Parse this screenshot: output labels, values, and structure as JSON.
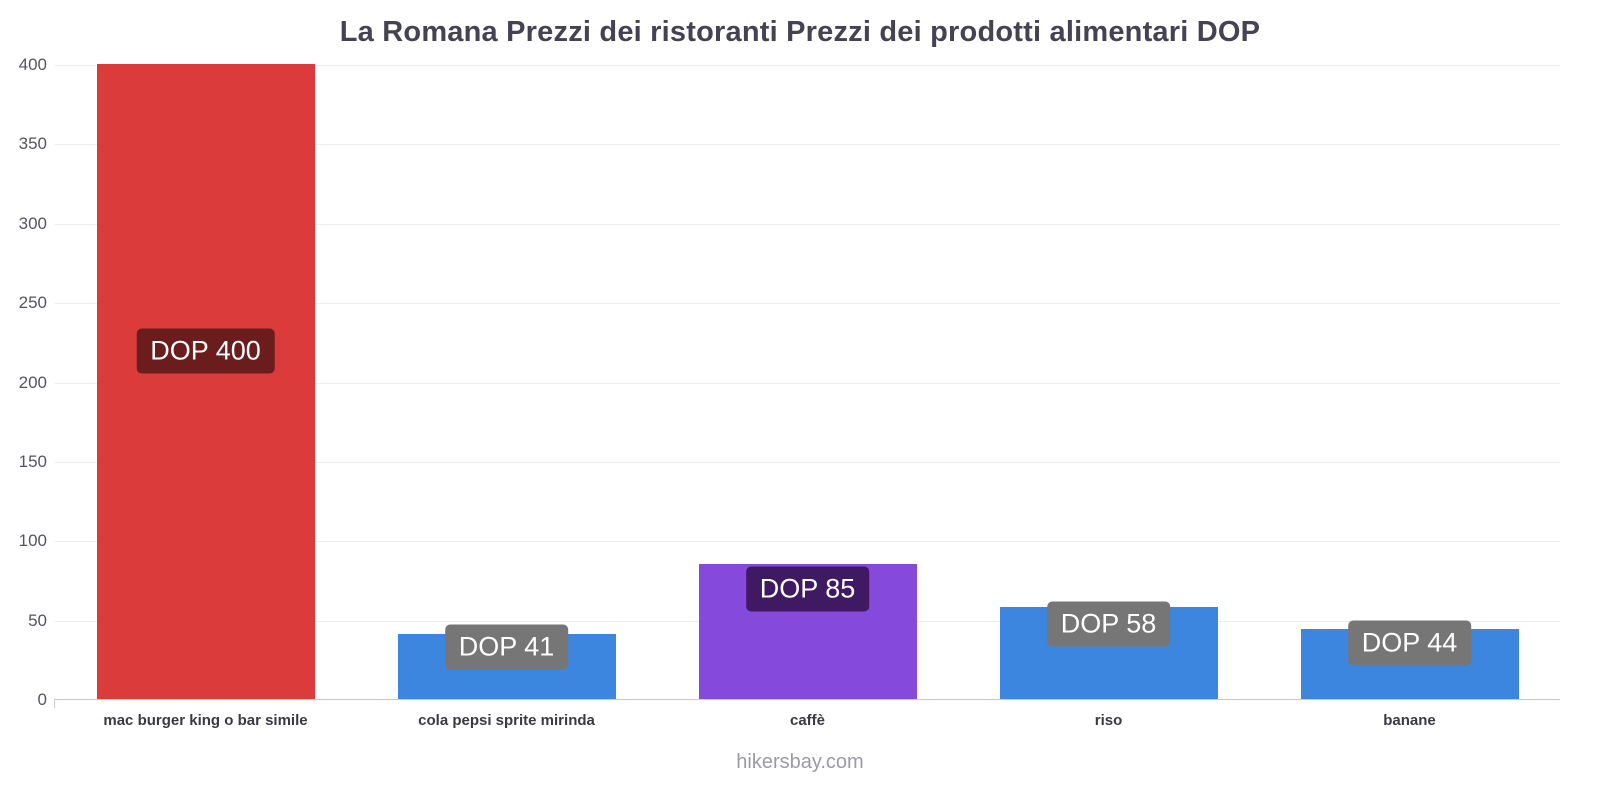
{
  "chart_data": {
    "type": "bar",
    "title": "La Romana Prezzi dei ristoranti Prezzi dei prodotti alimentari DOP",
    "currency": "DOP",
    "categories": [
      "mac burger king o bar simile",
      "cola pepsi sprite mirinda",
      "caffè",
      "riso",
      "banane"
    ],
    "values": [
      400,
      41,
      85,
      58,
      44
    ],
    "value_labels": [
      "DOP 400",
      "DOP 41",
      "DOP 85",
      "DOP 58",
      "DOP 44"
    ],
    "bar_colors": [
      "#db3b3b",
      "#3d86e0",
      "#8549dc",
      "#3d86e0",
      "#3d86e0"
    ],
    "label_bg_colors": [
      "#6b1c1c",
      "#767676",
      "#3f1a63",
      "#767676",
      "#767676"
    ],
    "ylim": [
      0,
      400
    ],
    "ytick_step": 50,
    "yticks": [
      0,
      50,
      100,
      150,
      200,
      250,
      300,
      350,
      400
    ],
    "grid": true,
    "legend": false,
    "xlabel": "",
    "ylabel": ""
  },
  "footer": {
    "watermark": "hikersbay.com"
  }
}
